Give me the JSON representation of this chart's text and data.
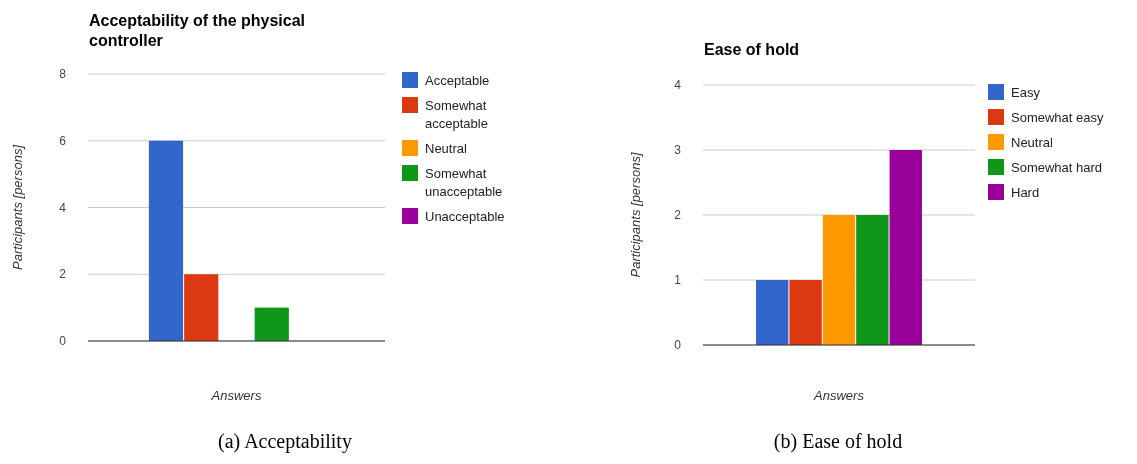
{
  "chart_data": [
    {
      "type": "bar",
      "title": "Acceptability of the physical controller",
      "xlabel": "Answers",
      "ylabel": "Participants [persons]",
      "categories": [
        null
      ],
      "series": [
        {
          "name": "Acceptable",
          "color": "#3366cc",
          "values": [
            6
          ]
        },
        {
          "name": "Somewhat acceptable",
          "color": "#dc3912",
          "values": [
            2
          ]
        },
        {
          "name": "Neutral",
          "color": "#ff9900",
          "values": [
            0
          ]
        },
        {
          "name": "Somewhat unacceptable",
          "color": "#109618",
          "values": [
            1
          ]
        },
        {
          "name": "Unacceptable",
          "color": "#990099",
          "values": [
            0
          ]
        }
      ],
      "ylim": [
        0,
        8
      ],
      "yticks": [
        0,
        2,
        4,
        6,
        8
      ],
      "grid": "y",
      "legend": "right",
      "annotations": [
        "(a) Acceptability"
      ]
    },
    {
      "type": "bar",
      "title": "Ease of hold",
      "xlabel": "Answers",
      "ylabel": "Participants [persons]",
      "categories": [
        null
      ],
      "series": [
        {
          "name": "Easy",
          "color": "#3366cc",
          "values": [
            1
          ]
        },
        {
          "name": "Somewhat easy",
          "color": "#dc3912",
          "values": [
            1
          ]
        },
        {
          "name": "Neutral",
          "color": "#ff9900",
          "values": [
            2
          ]
        },
        {
          "name": "Somewhat hard",
          "color": "#109618",
          "values": [
            2
          ]
        },
        {
          "name": "Hard",
          "color": "#990099",
          "values": [
            3
          ]
        }
      ],
      "ylim": [
        0,
        4
      ],
      "yticks": [
        0,
        1,
        2,
        3,
        4
      ],
      "grid": "y",
      "legend": "right",
      "annotations": [
        "(b) Ease of hold"
      ]
    }
  ]
}
